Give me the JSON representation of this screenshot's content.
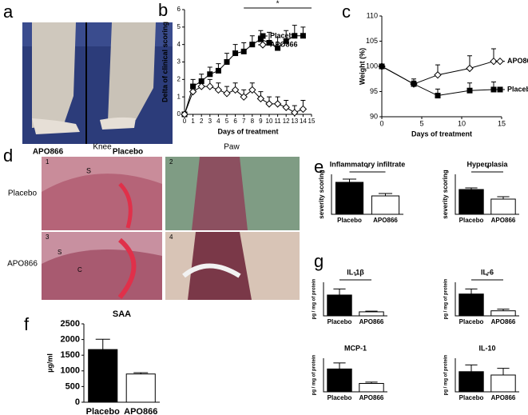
{
  "figure": {
    "panel_letters": [
      "a",
      "b",
      "c",
      "d",
      "e",
      "f",
      "g"
    ],
    "photo_a_labels": [
      "APO866",
      "Placebo"
    ],
    "photo_d_columns": [
      "Knee",
      "Paw"
    ],
    "photo_d_rows": [
      "Placebo",
      "APO866"
    ],
    "photo_d_numbers": [
      "1",
      "2",
      "3",
      "4"
    ],
    "photo_d_marks": [
      "S",
      "S",
      "C"
    ]
  },
  "chart_data": [
    {
      "type": "line",
      "xlabel": "Days of treatment",
      "ylabel": "Delta of clinical scoring",
      "x": [
        0,
        1,
        2,
        3,
        4,
        5,
        6,
        7,
        8,
        9,
        10,
        11,
        12,
        13,
        14
      ],
      "xlim": [
        0,
        15
      ],
      "xticks": [
        0,
        1,
        2,
        3,
        4,
        5,
        6,
        7,
        8,
        9,
        10,
        11,
        12,
        13,
        14,
        15
      ],
      "ylim": [
        0,
        6
      ],
      "yticks": [
        0,
        1,
        2,
        3,
        4,
        5,
        6
      ],
      "annotation": "*",
      "series": [
        {
          "name": "Placebo",
          "color": "#000000",
          "marker": "square",
          "filled": true,
          "values": [
            0,
            1.6,
            1.9,
            2.3,
            2.5,
            3.0,
            3.5,
            3.6,
            4.0,
            4.3,
            4.1,
            3.8,
            4.2,
            4.5,
            4.5
          ],
          "errors": [
            0,
            0.4,
            0.4,
            0.4,
            0.4,
            0.5,
            0.5,
            0.5,
            0.5,
            0.5,
            0.6,
            0.6,
            0.6,
            0.6,
            0.5
          ]
        },
        {
          "name": "APO866",
          "color": "#000000",
          "marker": "diamond",
          "filled": false,
          "values": [
            0,
            1.3,
            1.6,
            1.6,
            1.4,
            1.2,
            1.4,
            1.0,
            1.4,
            0.9,
            0.6,
            0.6,
            0.4,
            0.1,
            0.3
          ],
          "errors": [
            0,
            0.4,
            0.4,
            0.4,
            0.4,
            0.4,
            0.4,
            0.4,
            0.4,
            0.4,
            0.4,
            0.4,
            0.4,
            0.4,
            0.5
          ]
        }
      ]
    },
    {
      "type": "line",
      "xlabel": "Days of treatment",
      "ylabel": "Weight (%)",
      "x": [
        0,
        4,
        7,
        11,
        14
      ],
      "xlim": [
        0,
        15
      ],
      "xticks": [
        0,
        5,
        10,
        15
      ],
      "ylim": [
        90,
        110
      ],
      "yticks": [
        90,
        95,
        100,
        105,
        110
      ],
      "series": [
        {
          "name": "APO866",
          "color": "#000000",
          "marker": "diamond",
          "filled": false,
          "values": [
            100,
            96.5,
            98.3,
            99.6,
            101
          ],
          "errors": [
            0,
            1.0,
            2.0,
            2.5,
            2.5
          ]
        },
        {
          "name": "Placebo",
          "color": "#000000",
          "marker": "square",
          "filled": true,
          "values": [
            100,
            96.5,
            94.2,
            95.2,
            95.4
          ],
          "errors": [
            0,
            0.6,
            1.3,
            1.5,
            1.5
          ]
        }
      ]
    },
    {
      "type": "bar",
      "title": "Inflammatory infiltrate",
      "ylabel": "severity scoring",
      "categories": [
        "Placebo",
        "APO866"
      ],
      "values": [
        2.0,
        1.15
      ],
      "errors": [
        0.2,
        0.15
      ],
      "colors": [
        "#000000",
        "#ffffff"
      ],
      "ylim": [
        0,
        2.5
      ],
      "annotation": "*"
    },
    {
      "type": "bar",
      "title": "Hyperplasia",
      "ylabel": "severity scoring",
      "categories": [
        "Placebo",
        "APO866"
      ],
      "values": [
        1.55,
        0.95
      ],
      "errors": [
        0.1,
        0.15
      ],
      "colors": [
        "#000000",
        "#ffffff"
      ],
      "ylim": [
        0,
        2.5
      ],
      "annotation": "*"
    },
    {
      "type": "bar",
      "title": "SAA",
      "ylabel": "µg/ml",
      "categories": [
        "Placebo",
        "APO866"
      ],
      "values": [
        1680,
        900
      ],
      "errors": [
        330,
        40
      ],
      "colors": [
        "#000000",
        "#ffffff"
      ],
      "ylim": [
        0,
        2500
      ],
      "yticks": [
        0,
        500,
        1000,
        1500,
        2000,
        2500
      ]
    },
    {
      "type": "bar",
      "title": "IL-1β",
      "ylabel": "pg / mg of protein",
      "categories": [
        "Placebo",
        "APO866"
      ],
      "values": [
        155,
        30
      ],
      "errors": [
        45,
        5
      ],
      "colors": [
        "#000000",
        "#ffffff"
      ],
      "ylim": [
        0,
        250
      ],
      "annotation": "*"
    },
    {
      "type": "bar",
      "title": "IL-6",
      "ylabel": "pg / mg of protein",
      "categories": [
        "Placebo",
        "APO866"
      ],
      "values": [
        13,
        3
      ],
      "errors": [
        3,
        1
      ],
      "colors": [
        "#000000",
        "#ffffff"
      ],
      "ylim": [
        0,
        20
      ],
      "annotation": "*"
    },
    {
      "type": "bar",
      "title": "MCP-1",
      "ylabel": "pg / mg of protein",
      "categories": [
        "Placebo",
        "APO866"
      ],
      "values": [
        68,
        25
      ],
      "errors": [
        18,
        4
      ],
      "colors": [
        "#000000",
        "#ffffff"
      ],
      "ylim": [
        0,
        100
      ]
    },
    {
      "type": "bar",
      "title": "IL-10",
      "ylabel": "pg / mg of protein",
      "categories": [
        "Placebo",
        "APO866"
      ],
      "values": [
        9,
        7.5
      ],
      "errors": [
        3,
        3
      ],
      "colors": [
        "#000000",
        "#ffffff"
      ],
      "ylim": [
        0,
        15
      ]
    }
  ]
}
